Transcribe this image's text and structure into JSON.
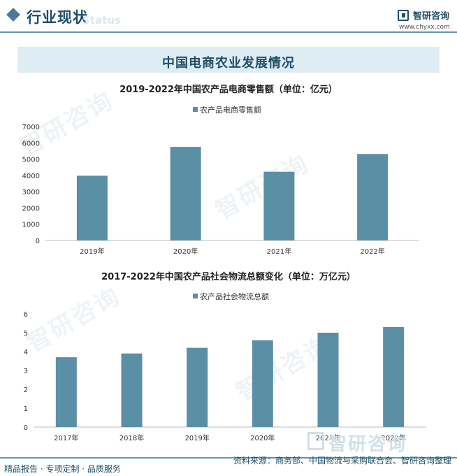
{
  "header": {
    "title": "行业现状",
    "ghost_text": "Status",
    "logo_name": "智研咨询",
    "logo_url": "www.chyxx.com"
  },
  "banner": {
    "title": "中国电商农业发展情况"
  },
  "chart_data": [
    {
      "type": "bar",
      "title": "2019-2022年中国农产品电商零售额（单位：亿元）",
      "categories": [
        "2019年",
        "2020年",
        "2021年",
        "2022年"
      ],
      "series": [
        {
          "name": "农产品电商零售额",
          "values": [
            3975,
            5750,
            4221,
            5313
          ]
        }
      ],
      "yticks": [
        0,
        1000,
        2000,
        3000,
        4000,
        5000,
        6000,
        7000
      ],
      "ylim": [
        0,
        7000
      ],
      "legend": "top-center",
      "grid": false,
      "color": "#5b8fa6"
    },
    {
      "type": "bar",
      "title": "2017-2022年中国农产品社会物流总额变化（单位：万亿元）",
      "categories": [
        "2017年",
        "2018年",
        "2019年",
        "2020年",
        "2021年",
        "2022年"
      ],
      "series": [
        {
          "name": "农产品社会物流总额",
          "values": [
            3.7,
            3.9,
            4.2,
            4.6,
            5.0,
            5.3
          ]
        }
      ],
      "yticks": [
        0,
        1,
        2,
        3,
        4,
        5,
        6
      ],
      "ylim": [
        0,
        6
      ],
      "legend": "top-center",
      "grid": false,
      "color": "#5b8fa6"
    }
  ],
  "footer": {
    "left": "精品报告 · 专项定制 · 品质服务",
    "source": "资料来源：商务部、中国物流与采购联合会、智研咨询整理",
    "watermark": "智研咨询"
  }
}
